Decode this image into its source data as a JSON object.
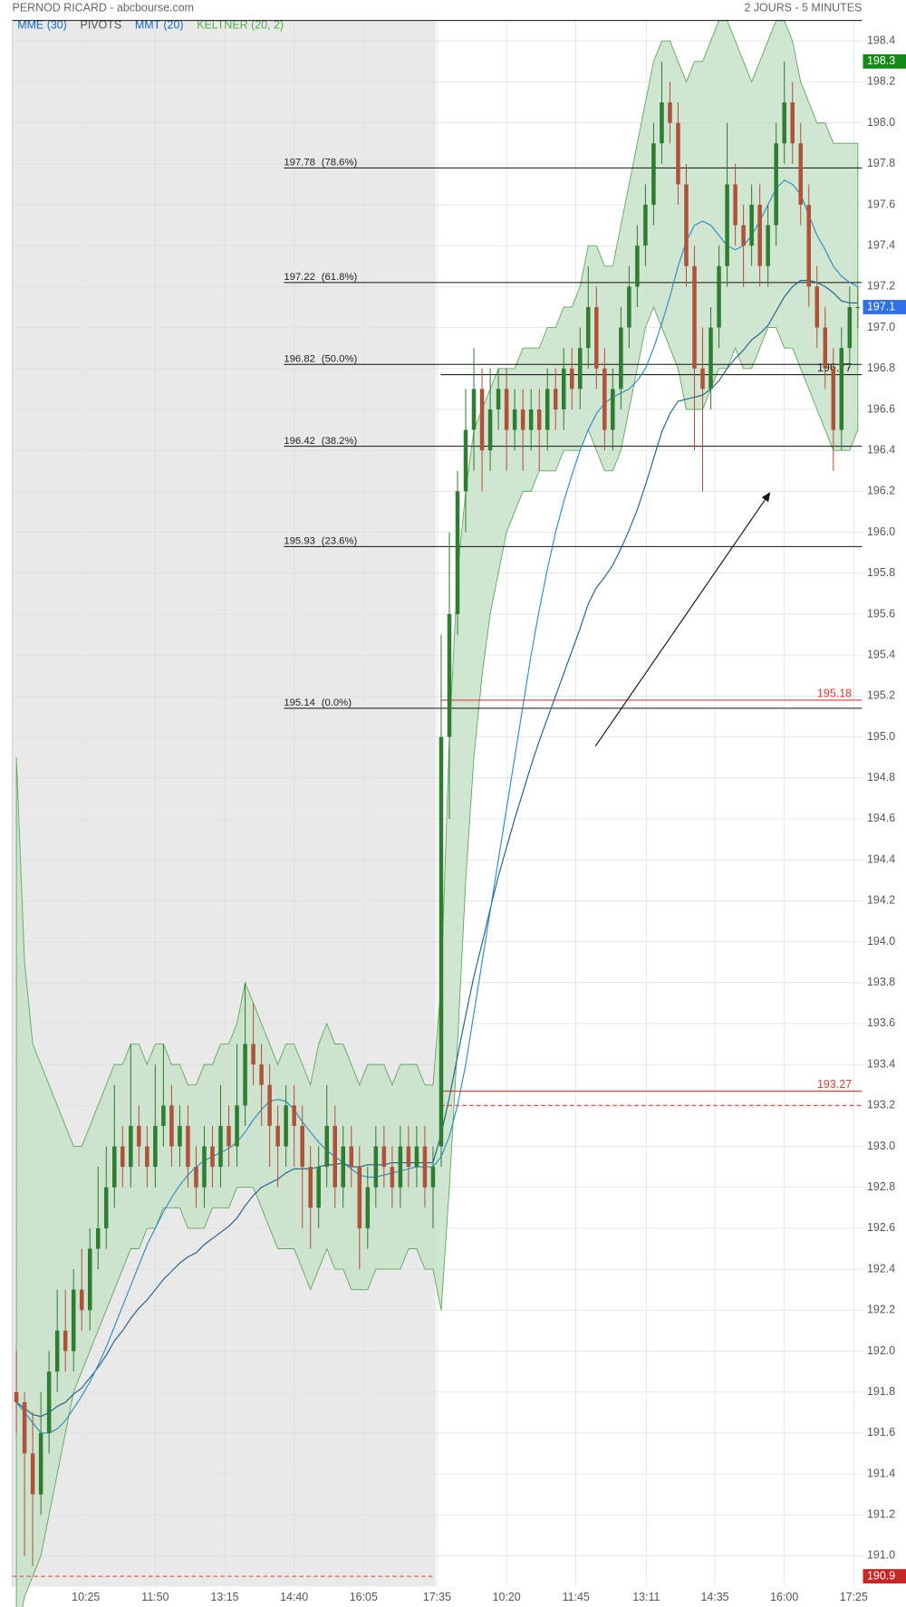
{
  "header": {
    "title": "PERNOD RICARD - abcbourse.com",
    "period": "2 JOURS - 5 MINUTES"
  },
  "chart_data": {
    "type": "candlestick",
    "up_color": "#2e7d32",
    "down_color": "#b0513a",
    "grid": true,
    "xlim": [
      -0.5,
      103.5
    ],
    "xticks": [
      {
        "value": 8.5,
        "label": "10:25"
      },
      {
        "value": 17,
        "label": "11:50"
      },
      {
        "value": 25.5,
        "label": "13:15"
      },
      {
        "value": 34,
        "label": "14:40"
      },
      {
        "value": 42.5,
        "label": "16:05"
      },
      {
        "value": 51.5,
        "label": "17:35"
      },
      {
        "value": 60,
        "label": "10:20"
      },
      {
        "value": 68.5,
        "label": "11:45"
      },
      {
        "value": 77.1,
        "label": "13:11"
      },
      {
        "value": 85.5,
        "label": "14:35"
      },
      {
        "value": 94,
        "label": "16:00"
      },
      {
        "value": 102.5,
        "label": "17:25"
      }
    ],
    "ylim": [
      190.85,
      198.5
    ],
    "yticks": [
      {
        "value": 191,
        "label": "191.0"
      },
      191.2,
      191.4,
      191.6,
      191.8,
      {
        "value": 192,
        "label": "192.0"
      },
      192.2,
      192.4,
      192.6,
      192.8,
      {
        "value": 193,
        "label": "193.0"
      },
      193.2,
      193.4,
      193.6,
      193.8,
      {
        "value": 194,
        "label": "194.0"
      },
      194.2,
      194.4,
      194.6,
      194.8,
      {
        "value": 195,
        "label": "195.0"
      },
      195.2,
      195.4,
      195.6,
      195.8,
      {
        "value": 196,
        "label": "196.0"
      },
      196.2,
      196.4,
      196.6,
      196.8,
      {
        "value": 197,
        "label": "197.0"
      },
      197.2,
      197.4,
      197.6,
      197.8,
      {
        "value": 198,
        "label": "198.0"
      },
      198.2,
      198.4
    ],
    "candles": [
      [
        191.8,
        192.0,
        191.6,
        191.75
      ],
      [
        191.75,
        191.8,
        191.0,
        191.5
      ],
      [
        191.5,
        191.7,
        190.95,
        191.3
      ],
      [
        191.3,
        191.8,
        191.2,
        191.6
      ],
      [
        191.6,
        192.0,
        191.5,
        191.9
      ],
      [
        191.9,
        192.3,
        191.8,
        192.1
      ],
      [
        192.1,
        192.3,
        191.9,
        192.0
      ],
      [
        192.0,
        192.4,
        191.9,
        192.3
      ],
      [
        192.3,
        192.5,
        192.1,
        192.2
      ],
      [
        192.2,
        192.6,
        192.1,
        192.5
      ],
      [
        192.5,
        192.9,
        192.4,
        192.6
      ],
      [
        192.6,
        193.0,
        192.5,
        192.8
      ],
      [
        192.8,
        193.3,
        192.7,
        193.0
      ],
      [
        193.0,
        193.1,
        192.8,
        192.9
      ],
      [
        192.9,
        193.5,
        192.8,
        193.1
      ],
      [
        193.1,
        193.2,
        192.9,
        193.0
      ],
      [
        193.0,
        193.1,
        192.8,
        192.9
      ],
      [
        192.9,
        193.4,
        192.8,
        193.1
      ],
      [
        193.1,
        193.5,
        193.0,
        193.2
      ],
      [
        193.2,
        193.3,
        192.9,
        193.0
      ],
      [
        193.0,
        193.2,
        192.9,
        193.1
      ],
      [
        193.1,
        193.2,
        192.8,
        192.9
      ],
      [
        192.9,
        193.0,
        192.7,
        192.8
      ],
      [
        192.8,
        193.1,
        192.7,
        193.0
      ],
      [
        193.0,
        193.1,
        192.8,
        192.9
      ],
      [
        192.9,
        193.3,
        192.8,
        193.1
      ],
      [
        193.1,
        193.2,
        192.9,
        193.0
      ],
      [
        193.0,
        193.5,
        192.9,
        193.2
      ],
      [
        193.2,
        193.8,
        193.1,
        193.5
      ],
      [
        193.5,
        193.7,
        193.3,
        193.4
      ],
      [
        193.4,
        193.5,
        193.1,
        193.3
      ],
      [
        193.3,
        193.4,
        192.9,
        193.1
      ],
      [
        193.1,
        193.2,
        192.8,
        193.0
      ],
      [
        193.0,
        193.3,
        192.9,
        193.2
      ],
      [
        193.2,
        193.3,
        192.9,
        193.1
      ],
      [
        193.1,
        193.2,
        192.6,
        192.9
      ],
      [
        192.9,
        193.0,
        192.5,
        192.7
      ],
      [
        192.7,
        193.0,
        192.6,
        192.9
      ],
      [
        192.9,
        193.3,
        192.8,
        193.1
      ],
      [
        193.1,
        193.2,
        192.7,
        192.8
      ],
      [
        192.8,
        193.1,
        192.7,
        193.0
      ],
      [
        193.0,
        193.1,
        192.8,
        192.9
      ],
      [
        192.9,
        193.0,
        192.4,
        192.6
      ],
      [
        192.6,
        192.9,
        192.5,
        192.8
      ],
      [
        192.8,
        193.1,
        192.7,
        193.0
      ],
      [
        193.0,
        193.1,
        192.8,
        192.9
      ],
      [
        192.9,
        193.0,
        192.7,
        192.8
      ],
      [
        192.8,
        193.1,
        192.7,
        193.0
      ],
      [
        193.0,
        193.1,
        192.8,
        192.9
      ],
      [
        192.9,
        193.1,
        192.8,
        193.0
      ],
      [
        193.0,
        193.1,
        192.7,
        192.8
      ],
      [
        192.8,
        193.0,
        192.6,
        192.9
      ],
      [
        193.0,
        195.5,
        192.9,
        195.0
      ],
      [
        195.0,
        196.0,
        194.6,
        195.6
      ],
      [
        195.6,
        196.3,
        195.5,
        196.2
      ],
      [
        196.2,
        196.7,
        196.0,
        196.5
      ],
      [
        196.5,
        196.9,
        196.3,
        196.7
      ],
      [
        196.7,
        196.8,
        196.2,
        196.4
      ],
      [
        196.4,
        196.8,
        196.3,
        196.6
      ],
      [
        196.6,
        196.8,
        196.5,
        196.7
      ],
      [
        196.7,
        196.8,
        196.3,
        196.5
      ],
      [
        196.5,
        196.7,
        196.4,
        196.6
      ],
      [
        196.6,
        196.7,
        196.3,
        196.5
      ],
      [
        196.5,
        196.7,
        196.4,
        196.6
      ],
      [
        196.6,
        196.7,
        196.3,
        196.5
      ],
      [
        196.5,
        196.8,
        196.4,
        196.7
      ],
      [
        196.7,
        196.8,
        196.5,
        196.6
      ],
      [
        196.6,
        196.9,
        196.5,
        196.8
      ],
      [
        196.8,
        196.9,
        196.6,
        196.7
      ],
      [
        196.7,
        197.0,
        196.6,
        196.9
      ],
      [
        196.9,
        197.3,
        196.8,
        197.1
      ],
      [
        197.1,
        197.2,
        196.7,
        196.8
      ],
      [
        196.8,
        196.9,
        196.4,
        196.5
      ],
      [
        196.5,
        196.8,
        196.4,
        196.7
      ],
      [
        196.7,
        197.1,
        196.6,
        197.0
      ],
      [
        197.0,
        197.3,
        196.9,
        197.2
      ],
      [
        197.2,
        197.5,
        197.1,
        197.4
      ],
      [
        197.4,
        197.7,
        197.3,
        197.6
      ],
      [
        197.6,
        198.0,
        197.5,
        197.9
      ],
      [
        197.9,
        198.3,
        197.8,
        198.1
      ],
      [
        198.1,
        198.2,
        197.9,
        198.0
      ],
      [
        198.0,
        198.1,
        197.6,
        197.7
      ],
      [
        197.7,
        197.8,
        197.2,
        197.3
      ],
      [
        197.3,
        197.4,
        196.4,
        196.8
      ],
      [
        196.8,
        197.0,
        196.2,
        196.7
      ],
      [
        196.7,
        197.1,
        196.6,
        197.0
      ],
      [
        197.0,
        197.4,
        196.9,
        197.3
      ],
      [
        197.3,
        198.0,
        197.2,
        197.7
      ],
      [
        197.7,
        197.8,
        197.4,
        197.5
      ],
      [
        197.5,
        197.6,
        197.2,
        197.4
      ],
      [
        197.4,
        197.7,
        197.3,
        197.6
      ],
      [
        197.6,
        197.7,
        197.2,
        197.3
      ],
      [
        197.3,
        197.6,
        197.2,
        197.5
      ],
      [
        197.5,
        198.0,
        197.4,
        197.9
      ],
      [
        197.9,
        198.3,
        197.8,
        198.1
      ],
      [
        198.1,
        198.2,
        197.8,
        197.9
      ],
      [
        197.9,
        198.0,
        197.5,
        197.6
      ],
      [
        197.6,
        197.7,
        197.1,
        197.2
      ],
      [
        197.2,
        197.3,
        196.9,
        197.0
      ],
      [
        197.0,
        197.1,
        196.7,
        196.8
      ],
      [
        196.8,
        196.9,
        196.3,
        196.5
      ],
      [
        196.5,
        197.0,
        196.4,
        196.9
      ],
      [
        196.9,
        197.2,
        196.8,
        197.1
      ],
      [
        197.1,
        197.2,
        197.0,
        197.1
      ]
    ],
    "series": [
      {
        "name": "MME (30)",
        "color": "#1f5f8b",
        "legend_color": "#1565c0",
        "values": [
          191.75,
          191.72,
          191.69,
          191.68,
          191.7,
          191.73,
          191.75,
          191.79,
          191.82,
          191.87,
          191.92,
          191.98,
          192.05,
          192.1,
          192.16,
          192.21,
          192.25,
          192.3,
          192.35,
          192.39,
          192.43,
          192.46,
          192.48,
          192.52,
          192.55,
          192.58,
          192.61,
          192.65,
          192.71,
          192.76,
          192.8,
          192.82,
          192.84,
          192.87,
          192.89,
          192.89,
          192.89,
          192.9,
          192.91,
          192.91,
          192.92,
          192.9,
          192.9,
          192.91,
          192.91,
          192.91,
          192.92,
          192.92,
          192.92,
          192.92,
          192.92,
          192.92,
          193.06,
          193.24,
          193.44,
          193.64,
          193.83,
          193.99,
          194.16,
          194.32,
          194.46,
          194.6,
          194.73,
          194.86,
          194.98,
          195.09,
          195.2,
          195.31,
          195.42,
          195.53,
          195.65,
          195.73,
          195.78,
          195.84,
          195.92,
          196.01,
          196.11,
          196.23,
          196.36,
          196.49,
          196.58,
          196.64,
          196.65,
          196.66,
          196.67,
          196.7,
          196.74,
          196.8,
          196.85,
          196.89,
          196.94,
          196.97,
          197.01,
          197.08,
          197.15,
          197.2,
          197.23,
          197.23,
          197.22,
          197.2,
          197.17,
          197.13,
          197.12,
          197.12
        ]
      },
      {
        "name": "PIVOTS",
        "color": "#555555",
        "levels": [
          {
            "value": 196.77,
            "color": "#222222",
            "day": 2,
            "style": "solid"
          },
          {
            "value": 195.18,
            "color": "#e53935",
            "day": 2,
            "style": "solid"
          },
          {
            "value": 193.27,
            "color": "#e53935",
            "day": 2,
            "style": "solid"
          },
          {
            "value": 193.2,
            "color": "#e53935",
            "day": 2,
            "style": "dashed"
          },
          {
            "value": 190.9,
            "color": "#e53935",
            "day": 1,
            "style": "dashed"
          }
        ]
      },
      {
        "name": "MMT (20)",
        "color": "#2b8cc4",
        "legend_color": "#1565c0",
        "values": [
          191.75,
          191.7,
          191.65,
          191.6,
          191.6,
          191.62,
          191.66,
          191.72,
          191.78,
          191.85,
          191.93,
          192.02,
          192.12,
          192.22,
          192.32,
          192.42,
          192.52,
          192.6,
          192.68,
          192.75,
          192.81,
          192.86,
          192.9,
          192.93,
          192.95,
          192.97,
          192.99,
          193.02,
          193.07,
          193.13,
          193.18,
          193.22,
          193.23,
          193.22,
          193.18,
          193.12,
          193.07,
          193.02,
          192.98,
          192.95,
          192.92,
          192.89,
          192.86,
          192.85,
          192.85,
          192.86,
          192.87,
          192.88,
          192.89,
          192.9,
          192.9,
          192.9,
          192.95,
          193.05,
          193.2,
          193.4,
          193.65,
          193.9,
          194.15,
          194.4,
          194.65,
          194.9,
          195.15,
          195.4,
          195.62,
          195.82,
          196.0,
          196.15,
          196.28,
          196.4,
          196.5,
          196.58,
          196.63,
          196.66,
          196.68,
          196.7,
          196.74,
          196.8,
          196.9,
          197.02,
          197.15,
          197.3,
          197.42,
          197.5,
          197.52,
          197.5,
          197.45,
          197.4,
          197.38,
          197.4,
          197.45,
          197.52,
          197.6,
          197.68,
          197.72,
          197.7,
          197.65,
          197.55,
          197.45,
          197.38,
          197.3,
          197.25,
          197.22,
          197.2
        ]
      },
      {
        "name": "KELTNER (20, 2)",
        "color": "#5fa85f",
        "fill": "#c8e2c8",
        "legend_color": "#4caf50",
        "upper": [
          194.9,
          193.9,
          193.5,
          193.4,
          193.3,
          193.2,
          193.1,
          193.0,
          193.0,
          193.1,
          193.2,
          193.3,
          193.4,
          193.4,
          193.5,
          193.5,
          193.4,
          193.5,
          193.5,
          193.4,
          193.4,
          193.3,
          193.3,
          193.4,
          193.4,
          193.5,
          193.5,
          193.6,
          193.8,
          193.7,
          193.6,
          193.5,
          193.4,
          193.5,
          193.5,
          193.4,
          193.3,
          193.5,
          193.6,
          193.5,
          193.5,
          193.4,
          193.3,
          193.4,
          193.4,
          193.4,
          193.3,
          193.4,
          193.4,
          193.4,
          193.3,
          193.3,
          193.8,
          195.0,
          195.8,
          196.2,
          196.5,
          196.6,
          196.7,
          196.8,
          196.8,
          196.8,
          196.9,
          196.9,
          196.9,
          197.0,
          197.0,
          197.1,
          197.1,
          197.2,
          197.4,
          197.4,
          197.3,
          197.3,
          197.5,
          197.7,
          197.9,
          198.1,
          198.3,
          198.4,
          198.4,
          198.3,
          198.2,
          198.3,
          198.3,
          198.4,
          198.5,
          198.5,
          198.4,
          198.3,
          198.2,
          198.3,
          198.4,
          198.5,
          198.5,
          198.4,
          198.2,
          198.1,
          198.0,
          198.0,
          197.9,
          197.9,
          197.9,
          197.9
        ],
        "lower": [
          190.6,
          190.8,
          190.9,
          191.0,
          191.2,
          191.4,
          191.6,
          191.8,
          191.9,
          192.0,
          192.1,
          192.2,
          192.3,
          192.4,
          192.5,
          192.5,
          192.6,
          192.6,
          192.7,
          192.7,
          192.7,
          192.6,
          192.6,
          192.6,
          192.7,
          192.7,
          192.7,
          192.8,
          192.8,
          192.8,
          192.7,
          192.6,
          192.5,
          192.5,
          192.5,
          192.4,
          192.3,
          192.4,
          192.5,
          192.4,
          192.4,
          192.3,
          192.3,
          192.3,
          192.4,
          192.4,
          192.4,
          192.4,
          192.5,
          192.5,
          192.4,
          192.4,
          192.2,
          192.8,
          193.5,
          194.3,
          194.9,
          195.3,
          195.6,
          195.8,
          196.0,
          196.1,
          196.2,
          196.2,
          196.3,
          196.3,
          196.3,
          196.4,
          196.4,
          196.4,
          196.5,
          196.4,
          196.3,
          196.3,
          196.4,
          196.6,
          196.8,
          197.0,
          197.1,
          197.0,
          196.9,
          196.8,
          196.6,
          196.6,
          196.6,
          196.7,
          196.8,
          196.8,
          196.9,
          196.8,
          196.8,
          196.9,
          197.0,
          197.0,
          196.9,
          196.9,
          196.8,
          196.7,
          196.6,
          196.5,
          196.4,
          196.4,
          196.4,
          196.5
        ]
      }
    ],
    "fibonacci": [
      {
        "value": 197.78,
        "pct": "(78.6%)"
      },
      {
        "value": 197.22,
        "pct": "(61.8%)"
      },
      {
        "value": 196.82,
        "pct": "(50.0%)"
      },
      {
        "value": 196.42,
        "pct": "(38.2%)"
      },
      {
        "value": 195.93,
        "pct": "(23.6%)"
      },
      {
        "value": 195.14,
        "pct": "(0.0%)"
      }
    ],
    "price_badges": [
      {
        "value": 198.3,
        "color": "#138a13"
      },
      {
        "value": 197.1,
        "color": "#2f6fe8"
      },
      {
        "value": 190.9,
        "color": "#c62828"
      }
    ]
  }
}
